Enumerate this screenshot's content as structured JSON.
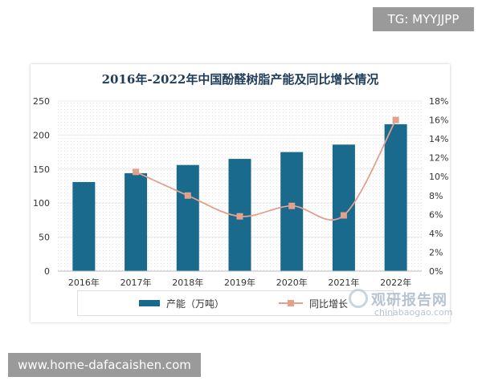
{
  "tg_label": "TG: MYYJJPP",
  "site_label": "www.home-dafacaishen.com",
  "watermark": {
    "cn": "观研报告网",
    "en": "chinabaogao.com"
  },
  "colors": {
    "bar": "#1a6a8d",
    "line": "#e2a08d",
    "grid": "#e8e8e8",
    "axis_text": "#333333"
  },
  "chart_data": {
    "type": "bar",
    "title": "2016年-2022年中国酚醛树脂产能及同比增长情况",
    "categories": [
      "2016年",
      "2017年",
      "2018年",
      "2019年",
      "2020年",
      "2021年",
      "2022年"
    ],
    "series": [
      {
        "name": "产能（万吨）",
        "type": "bar",
        "axis": "left",
        "values": [
          131,
          144,
          156,
          165,
          175,
          186,
          216
        ]
      },
      {
        "name": "同比增长",
        "type": "line",
        "axis": "right",
        "values": [
          null,
          10.5,
          8.0,
          5.8,
          6.9,
          5.9,
          16.0
        ]
      }
    ],
    "ylim": [
      0,
      250
    ],
    "y_ticks": [
      "0",
      "50",
      "100",
      "150",
      "200",
      "250"
    ],
    "y2lim": [
      0,
      18
    ],
    "y2_ticks": [
      "0%",
      "2%",
      "4%",
      "6%",
      "8%",
      "10%",
      "12%",
      "14%",
      "16%",
      "18%"
    ],
    "legend": {
      "position": "bottom",
      "items": [
        "产能（万吨）",
        "同比增长"
      ]
    }
  }
}
